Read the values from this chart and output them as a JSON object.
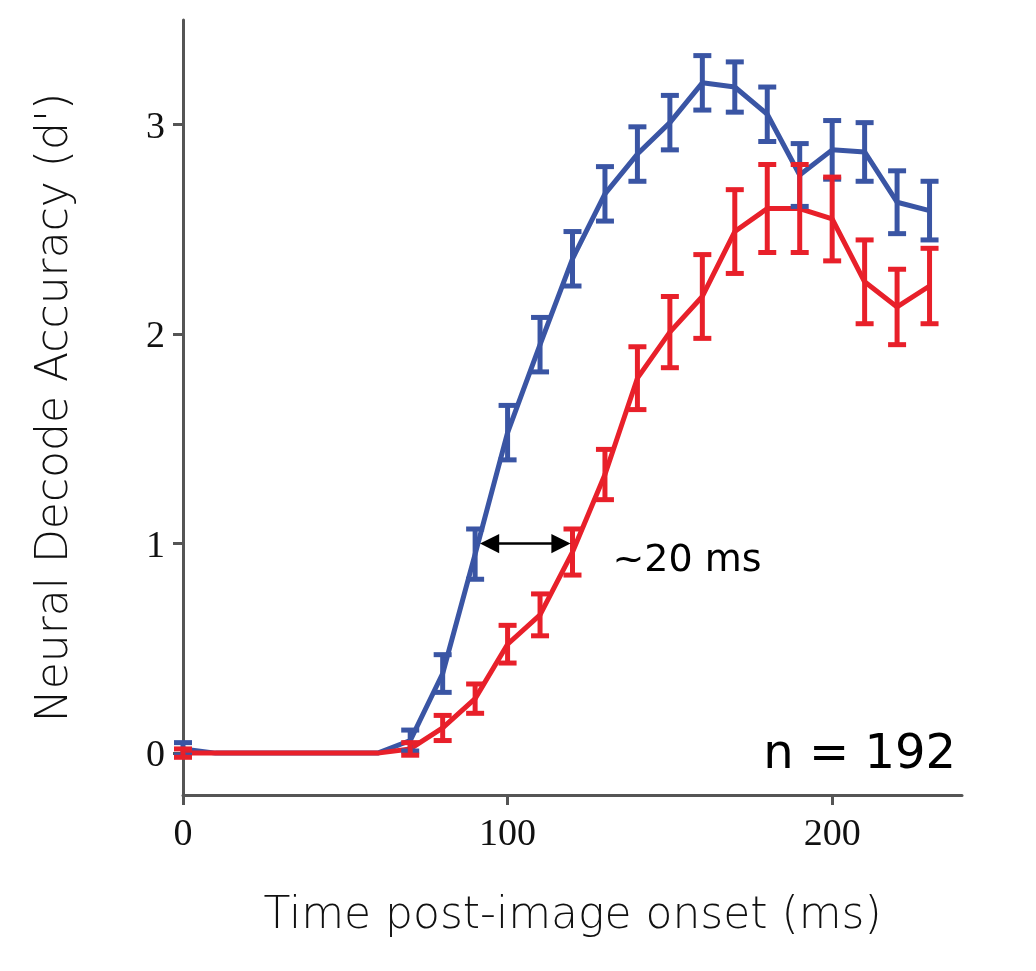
{
  "chart_data": {
    "type": "line",
    "xlabel": "Time post-image onset (ms)",
    "ylabel": "Neural Decode Accuracy (d')",
    "x": [
      0,
      10,
      20,
      30,
      40,
      50,
      60,
      70,
      80,
      90,
      100,
      110,
      120,
      130,
      140,
      150,
      160,
      170,
      180,
      190,
      200,
      210,
      220,
      230
    ],
    "xlim": [
      0,
      240
    ],
    "xticks": [
      0,
      100,
      200
    ],
    "ylim": [
      -0.2,
      3.5
    ],
    "yticks": [
      0,
      1,
      2,
      3
    ],
    "grid": false,
    "marker": "none",
    "series": [
      {
        "color": "#3a55a4",
        "values": [
          0.02,
          0,
          0,
          0,
          0,
          0,
          0,
          0.06,
          0.38,
          0.95,
          1.53,
          1.95,
          2.36,
          2.67,
          2.86,
          3.01,
          3.2,
          3.18,
          3.05,
          2.76,
          2.88,
          2.87,
          2.63,
          2.59
        ],
        "errors": [
          0.03,
          null,
          null,
          null,
          null,
          null,
          null,
          0.05,
          0.09,
          0.12,
          0.13,
          0.13,
          0.13,
          0.13,
          0.13,
          0.13,
          0.13,
          0.12,
          0.13,
          0.15,
          0.14,
          0.14,
          0.15,
          0.14
        ]
      },
      {
        "color": "#e8202a",
        "values": [
          0,
          0,
          0,
          0,
          0,
          0,
          0,
          0.02,
          0.12,
          0.26,
          0.52,
          0.66,
          0.96,
          1.33,
          1.79,
          2.01,
          2.18,
          2.49,
          2.6,
          2.6,
          2.55,
          2.25,
          2.13,
          2.23
        ],
        "errors": [
          0.02,
          null,
          null,
          null,
          null,
          null,
          null,
          0.03,
          0.06,
          0.07,
          0.09,
          0.1,
          0.11,
          0.12,
          0.15,
          0.17,
          0.2,
          0.2,
          0.21,
          0.21,
          0.2,
          0.2,
          0.18,
          0.18
        ]
      }
    ],
    "annotations": [
      {
        "text": "~20 ms",
        "x": 120,
        "y": 1
      },
      "n = 192"
    ]
  }
}
